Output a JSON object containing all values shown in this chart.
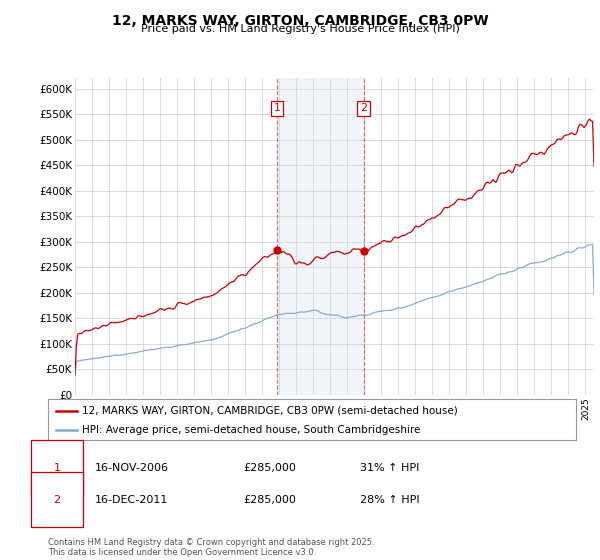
{
  "title": "12, MARKS WAY, GIRTON, CAMBRIDGE, CB3 0PW",
  "subtitle": "Price paid vs. HM Land Registry's House Price Index (HPI)",
  "legend_line1": "12, MARKS WAY, GIRTON, CAMBRIDGE, CB3 0PW (semi-detached house)",
  "legend_line2": "HPI: Average price, semi-detached house, South Cambridgeshire",
  "red_color": "#cc0000",
  "blue_color": "#88aacc",
  "vline_color": "#dd4444",
  "fill_color": "#ccddf0",
  "background_color": "#ffffff",
  "grid_color": "#cccccc",
  "ylim": [
    0,
    620000
  ],
  "yticks": [
    0,
    50000,
    100000,
    150000,
    200000,
    250000,
    300000,
    350000,
    400000,
    450000,
    500000,
    550000,
    600000
  ],
  "ytick_labels": [
    "£0",
    "£50K",
    "£100K",
    "£150K",
    "£200K",
    "£250K",
    "£300K",
    "£350K",
    "£400K",
    "£450K",
    "£500K",
    "£550K",
    "£600K"
  ],
  "transaction1_date": "16-NOV-2006",
  "transaction1_price": "£285,000",
  "transaction1_hpi": "31% ↑ HPI",
  "transaction1_x": 2006.88,
  "transaction2_date": "16-DEC-2011",
  "transaction2_price": "£285,000",
  "transaction2_hpi": "28% ↑ HPI",
  "transaction2_x": 2011.96,
  "footnote": "Contains HM Land Registry data © Crown copyright and database right 2025.\nThis data is licensed under the Open Government Licence v3.0.",
  "xstart": 1995,
  "xend": 2025.5,
  "label_color": "#cc0000"
}
